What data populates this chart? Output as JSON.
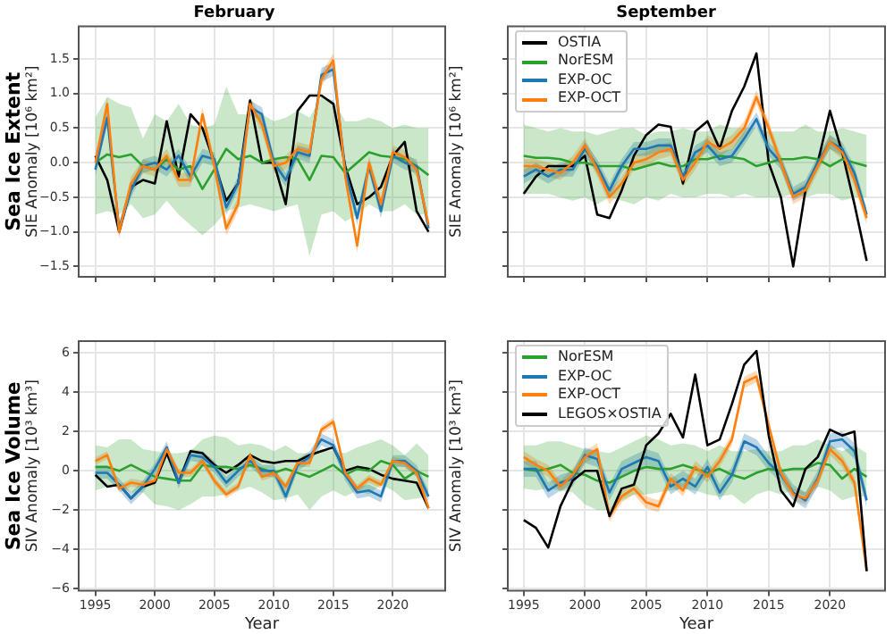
{
  "chart_data": [
    {
      "type": "line",
      "title": "February",
      "subtitle": "Sea Ice Extent",
      "ylabel": "SIE Anomaly [10⁶ km²]",
      "x": [
        1995,
        1996,
        1997,
        1998,
        1999,
        2000,
        2001,
        2002,
        2003,
        2004,
        2005,
        2006,
        2007,
        2008,
        2009,
        2010,
        2011,
        2012,
        2013,
        2014,
        2015,
        2016,
        2017,
        2018,
        2019,
        2020,
        2021,
        2022,
        2023
      ],
      "xlim": [
        1993.6,
        2024.4
      ],
      "xticks": [
        1995,
        2000,
        2005,
        2010,
        2015,
        2020
      ],
      "ylim": [
        -1.65,
        1.97
      ],
      "yticks": [
        {
          "value": -1.5,
          "label": "−1.5"
        },
        {
          "value": -1,
          "label": "−1.0"
        },
        {
          "value": -0.5,
          "label": "−0.5"
        },
        {
          "value": 0,
          "label": "0.0"
        },
        {
          "value": 0.5,
          "label": "0.5"
        },
        {
          "value": 1,
          "label": "1.0"
        },
        {
          "value": 1.5,
          "label": "1.5"
        }
      ],
      "grid": true,
      "tick_labels": "y",
      "series": [
        {
          "color": "#000000",
          "values": [
            0.1,
            -0.25,
            -1.0,
            -0.35,
            -0.25,
            -0.3,
            0.6,
            -0.2,
            0.7,
            0.5,
            0.0,
            -0.55,
            -0.3,
            0.9,
            0.0,
            0.0,
            -0.6,
            0.75,
            0.97,
            0.97,
            0.85,
            -0.05,
            -0.6,
            -0.5,
            -0.35,
            0.1,
            0.3,
            -0.7,
            -1.0
          ]
        },
        {
          "color": "#2ca02c",
          "values": [
            0.0,
            0.12,
            0.08,
            0.12,
            -0.05,
            -0.1,
            0.05,
            -0.1,
            -0.05,
            -0.38,
            -0.1,
            0.2,
            0.05,
            0.1,
            0.0,
            0.05,
            0.08,
            0.05,
            -0.25,
            0.1,
            0.08,
            -0.15,
            0.0,
            0.15,
            0.1,
            0.08,
            0.05,
            -0.05,
            -0.18
          ],
          "lower": [
            -0.75,
            -0.7,
            -0.75,
            -0.6,
            -0.8,
            -0.75,
            -0.55,
            -0.75,
            -0.9,
            -1.05,
            -0.9,
            -0.7,
            -0.65,
            -0.6,
            -0.65,
            -0.7,
            -0.65,
            -0.6,
            -1.35,
            -0.75,
            -0.7,
            -0.85,
            -0.75,
            -0.6,
            -0.7,
            -0.7,
            -0.6,
            -0.75,
            -0.75
          ],
          "upper": [
            0.65,
            0.95,
            0.85,
            0.8,
            0.35,
            0.7,
            0.6,
            0.85,
            0.55,
            0.5,
            0.55,
            1.1,
            0.7,
            0.7,
            0.7,
            0.6,
            0.65,
            0.75,
            0.65,
            0.95,
            0.9,
            0.6,
            0.6,
            0.65,
            0.6,
            0.5,
            0.55,
            0.5,
            0.5
          ]
        },
        {
          "color": "#1f77b4",
          "values": [
            -0.1,
            0.65,
            -0.95,
            -0.4,
            -0.05,
            0.0,
            -0.1,
            0.1,
            -0.2,
            0.1,
            0.05,
            -0.65,
            -0.3,
            0.8,
            0.7,
            0.0,
            -0.25,
            0.15,
            0.1,
            1.27,
            1.35,
            -0.1,
            -0.8,
            -0.05,
            -0.7,
            0.1,
            0.0,
            -0.05,
            -0.95
          ],
          "lower": [
            -0.2,
            0.55,
            -1.05,
            -0.5,
            -0.15,
            -0.1,
            -0.2,
            0.0,
            -0.3,
            0.0,
            -0.05,
            -0.75,
            -0.4,
            0.7,
            0.6,
            -0.1,
            -0.35,
            0.05,
            0.0,
            1.17,
            1.25,
            -0.2,
            -0.9,
            -0.15,
            -0.8,
            0.0,
            -0.1,
            -0.15,
            -1.05
          ],
          "upper": [
            0.0,
            0.75,
            -0.85,
            -0.3,
            0.05,
            0.1,
            0.0,
            0.2,
            -0.1,
            0.2,
            0.15,
            -0.55,
            -0.2,
            0.9,
            0.8,
            0.1,
            -0.15,
            0.25,
            0.2,
            1.37,
            1.45,
            0.0,
            -0.7,
            0.05,
            -0.6,
            0.2,
            0.1,
            0.05,
            -0.85
          ]
        },
        {
          "color": "#ff7f0e",
          "values": [
            0.0,
            0.85,
            -1.0,
            -0.3,
            -0.05,
            -0.1,
            0.1,
            -0.25,
            -0.25,
            0.7,
            -0.05,
            -0.95,
            -0.6,
            0.85,
            0.55,
            -0.05,
            0.0,
            0.2,
            0.15,
            1.2,
            1.48,
            -0.2,
            -1.2,
            0.0,
            -0.6,
            0.15,
            0.08,
            -0.1,
            -0.9
          ],
          "lower": [
            -0.1,
            0.75,
            -1.1,
            -0.4,
            -0.15,
            -0.2,
            0.0,
            -0.35,
            -0.35,
            0.6,
            -0.15,
            -1.05,
            -0.7,
            0.75,
            0.45,
            -0.15,
            -0.1,
            0.1,
            0.05,
            1.1,
            1.38,
            -0.3,
            -1.3,
            -0.1,
            -0.7,
            0.05,
            -0.02,
            -0.2,
            -1.0
          ],
          "upper": [
            0.1,
            0.95,
            -0.9,
            -0.2,
            0.05,
            0.0,
            0.2,
            -0.15,
            -0.15,
            0.8,
            0.05,
            -0.85,
            -0.5,
            0.95,
            0.65,
            0.05,
            0.1,
            0.3,
            0.25,
            1.3,
            1.58,
            -0.1,
            -1.1,
            0.1,
            -0.5,
            0.25,
            0.18,
            0.0,
            -0.8
          ]
        }
      ]
    },
    {
      "type": "line",
      "title": "September",
      "ylabel": "SIE Anomaly [10⁶ km²]",
      "x": [
        1995,
        1996,
        1997,
        1998,
        1999,
        2000,
        2001,
        2002,
        2003,
        2004,
        2005,
        2006,
        2007,
        2008,
        2009,
        2010,
        2011,
        2012,
        2013,
        2014,
        2015,
        2016,
        2017,
        2018,
        2019,
        2020,
        2021,
        2022,
        2023
      ],
      "xlim": [
        1993.7,
        2024.5
      ],
      "xticks": [
        1995,
        2000,
        2005,
        2010,
        2015,
        2020
      ],
      "ylim": [
        -1.65,
        1.97
      ],
      "yticks": [
        -1.5,
        -1,
        -0.5,
        0,
        0.5,
        1,
        1.5
      ],
      "grid": true,
      "tick_labels": false,
      "legend": "top left",
      "series": [
        {
          "name": "OSTIA",
          "color": "#000000",
          "values": [
            -0.45,
            -0.2,
            -0.05,
            -0.05,
            -0.05,
            0.1,
            -0.75,
            -0.8,
            -0.4,
            0.1,
            0.4,
            0.55,
            0.52,
            -0.3,
            0.45,
            0.6,
            0.2,
            0.75,
            1.1,
            1.58,
            0.0,
            -0.5,
            -1.5,
            -0.4,
            0.0,
            0.75,
            0.15,
            -0.6,
            -1.42
          ]
        },
        {
          "name": "NorESM",
          "color": "#2ca02c",
          "values": [
            0.1,
            0.07,
            0.07,
            0.05,
            0.0,
            0.0,
            -0.05,
            -0.05,
            -0.05,
            -0.1,
            -0.05,
            0.0,
            -0.05,
            -0.05,
            0.05,
            0.05,
            0.1,
            0.08,
            0.05,
            -0.05,
            0.0,
            0.05,
            0.05,
            0.08,
            0.05,
            -0.05,
            0.05,
            0.0,
            -0.05
          ],
          "lower": [
            -0.45,
            -0.45,
            -0.45,
            -0.5,
            -0.55,
            -0.5,
            -0.6,
            -0.5,
            -0.55,
            -0.6,
            -0.5,
            -0.55,
            -0.45,
            -0.5,
            -0.5,
            -0.45,
            -0.45,
            -0.5,
            -0.45,
            -0.5,
            -0.5,
            -0.5,
            -0.45,
            -0.5,
            -0.45,
            -0.45,
            -0.55,
            -0.5,
            -0.5
          ],
          "upper": [
            0.55,
            0.5,
            0.45,
            0.5,
            0.45,
            0.45,
            0.4,
            0.45,
            0.5,
            0.5,
            0.4,
            0.45,
            0.45,
            0.5,
            0.45,
            0.45,
            0.55,
            0.5,
            0.5,
            0.5,
            0.45,
            0.45,
            0.45,
            0.55,
            0.45,
            0.45,
            0.5,
            0.45,
            0.4
          ]
        },
        {
          "name": "EXP-OC",
          "color": "#1f77b4",
          "values": [
            -0.2,
            -0.1,
            -0.2,
            -0.1,
            -0.1,
            0.2,
            -0.05,
            -0.4,
            -0.05,
            0.2,
            0.2,
            0.25,
            0.25,
            -0.2,
            0.15,
            0.25,
            0.05,
            0.1,
            0.35,
            0.63,
            0.2,
            0.0,
            -0.45,
            -0.35,
            0.0,
            0.3,
            0.2,
            -0.15,
            -0.75
          ],
          "lower": [
            -0.3,
            -0.2,
            -0.3,
            -0.2,
            -0.2,
            0.1,
            -0.15,
            -0.5,
            -0.15,
            0.1,
            0.1,
            0.15,
            0.15,
            -0.3,
            0.05,
            0.15,
            -0.05,
            0.0,
            0.25,
            0.53,
            0.1,
            -0.1,
            -0.55,
            -0.45,
            -0.1,
            0.2,
            0.1,
            -0.25,
            -0.85
          ],
          "upper": [
            -0.1,
            0.0,
            -0.1,
            0.0,
            0.0,
            0.3,
            0.05,
            -0.3,
            0.05,
            0.3,
            0.3,
            0.35,
            0.35,
            -0.1,
            0.25,
            0.35,
            0.15,
            0.2,
            0.45,
            0.73,
            0.3,
            0.1,
            -0.35,
            -0.25,
            0.1,
            0.4,
            0.3,
            -0.05,
            -0.65
          ]
        },
        {
          "name": "EXP-OCT",
          "color": "#ff7f0e",
          "values": [
            -0.05,
            -0.05,
            -0.1,
            -0.15,
            0.0,
            0.25,
            -0.1,
            -0.5,
            -0.3,
            0.0,
            0.05,
            0.15,
            0.2,
            -0.25,
            0.0,
            0.3,
            0.2,
            0.3,
            0.5,
            0.95,
            0.5,
            0.0,
            -0.5,
            -0.4,
            -0.05,
            0.3,
            0.15,
            -0.25,
            -0.8
          ],
          "lower": [
            -0.15,
            -0.15,
            -0.2,
            -0.25,
            -0.1,
            0.15,
            -0.2,
            -0.6,
            -0.4,
            -0.1,
            -0.05,
            0.05,
            0.1,
            -0.35,
            -0.1,
            0.2,
            0.1,
            0.2,
            0.4,
            0.85,
            0.4,
            -0.1,
            -0.6,
            -0.5,
            -0.15,
            0.2,
            0.05,
            -0.35,
            -0.9
          ],
          "upper": [
            0.05,
            0.05,
            0.0,
            -0.05,
            0.1,
            0.35,
            0.0,
            -0.4,
            -0.2,
            0.1,
            0.15,
            0.25,
            0.3,
            -0.15,
            0.1,
            0.4,
            0.3,
            0.4,
            0.6,
            1.05,
            0.6,
            0.1,
            -0.4,
            -0.3,
            0.05,
            0.4,
            0.25,
            -0.15,
            -0.7
          ]
        }
      ]
    },
    {
      "type": "line",
      "subtitle": "Sea Ice Volume",
      "ylabel": "SIV Anomaly [10³ km³]",
      "xlabel": "Year",
      "x": [
        1995,
        1996,
        1997,
        1998,
        1999,
        2000,
        2001,
        2002,
        2003,
        2004,
        2005,
        2006,
        2007,
        2008,
        2009,
        2010,
        2011,
        2012,
        2013,
        2014,
        2015,
        2016,
        2017,
        2018,
        2019,
        2020,
        2021,
        2022,
        2023
      ],
      "xlim": [
        1993.6,
        2024.4
      ],
      "xticks": [
        1995,
        2000,
        2005,
        2010,
        2015,
        2020
      ],
      "ylim": [
        -6.1,
        6.6
      ],
      "yticks": [
        {
          "value": -6,
          "label": "−6"
        },
        {
          "value": -4,
          "label": "−4"
        },
        {
          "value": -2,
          "label": "−2"
        },
        0,
        2,
        4,
        6
      ],
      "grid": true,
      "series": [
        {
          "color": "#000000",
          "values": [
            -0.2,
            -0.8,
            -0.7,
            -1.4,
            -0.8,
            -0.6,
            0.9,
            -0.6,
            1.0,
            0.9,
            0.3,
            -0.1,
            0.3,
            0.8,
            0.5,
            0.4,
            0.5,
            0.5,
            0.8,
            1.0,
            1.2,
            0.0,
            0.2,
            0.1,
            -0.2,
            -0.4,
            -0.5,
            -0.6,
            -1.9
          ]
        },
        {
          "color": "#2ca02c",
          "values": [
            0.2,
            0.2,
            0.0,
            0.3,
            0.0,
            -0.3,
            -0.4,
            -0.5,
            -0.5,
            0.3,
            0.2,
            0.2,
            0.1,
            0.3,
            0.1,
            -0.1,
            0.1,
            -0.1,
            -0.3,
            0.0,
            0.3,
            -0.2,
            0.1,
            0.0,
            0.5,
            0.3,
            -0.4,
            0.0,
            -0.3
          ],
          "lower": [
            -1.0,
            -0.8,
            -0.8,
            -1.1,
            -1.1,
            -1.7,
            -1.8,
            -2.0,
            -1.7,
            -1.3,
            -1.3,
            -1.2,
            -1.0,
            -0.8,
            -1.1,
            -1.5,
            -1.4,
            -1.2,
            -2.0,
            -1.3,
            -1.0,
            -1.3,
            -1.0,
            -1.2,
            -0.7,
            -1.0,
            -1.5,
            -1.4,
            -1.3
          ],
          "upper": [
            1.3,
            1.2,
            1.6,
            1.6,
            1.1,
            1.0,
            0.9,
            0.9,
            1.0,
            1.6,
            1.8,
            1.7,
            1.3,
            1.4,
            1.3,
            1.0,
            1.3,
            0.9,
            0.9,
            1.1,
            1.0,
            0.9,
            1.2,
            1.4,
            1.6,
            1.3,
            0.8,
            1.4,
            0.8
          ]
        },
        {
          "color": "#1f77b4",
          "values": [
            -0.1,
            -0.1,
            -0.7,
            -1.4,
            -0.8,
            0.1,
            1.2,
            -0.6,
            0.8,
            0.7,
            0.2,
            -0.6,
            0.0,
            0.5,
            0.0,
            0.0,
            -1.3,
            0.3,
            0.7,
            1.6,
            1.3,
            -0.2,
            -1.1,
            -1.0,
            -1.3,
            0.5,
            0.5,
            0.0,
            -1.3
          ],
          "lower": [
            -0.4,
            -0.4,
            -1.0,
            -1.7,
            -1.1,
            -0.2,
            0.9,
            -0.9,
            0.5,
            0.4,
            -0.1,
            -0.9,
            -0.3,
            0.2,
            -0.3,
            -0.3,
            -1.6,
            0.0,
            0.4,
            1.3,
            1.0,
            -0.5,
            -1.4,
            -1.3,
            -1.6,
            0.2,
            0.2,
            -0.3,
            -1.6
          ],
          "upper": [
            0.2,
            0.2,
            -0.4,
            -1.1,
            -0.5,
            0.4,
            1.5,
            -0.3,
            1.1,
            1.0,
            0.5,
            -0.3,
            0.3,
            0.8,
            0.3,
            0.3,
            -1.0,
            0.6,
            1.0,
            1.9,
            1.6,
            0.1,
            -0.8,
            -0.7,
            -1.0,
            0.8,
            0.8,
            0.3,
            -1.0
          ]
        },
        {
          "color": "#ff7f0e",
          "values": [
            0.5,
            0.8,
            -0.9,
            -0.6,
            -0.7,
            -0.5,
            1.1,
            -0.1,
            -0.1,
            0.5,
            -0.5,
            -1.2,
            -0.8,
            0.8,
            -0.3,
            -0.1,
            -0.8,
            0.4,
            0.4,
            2.1,
            2.5,
            -0.1,
            -0.9,
            -0.4,
            -0.7,
            0.5,
            0.4,
            -0.1,
            -1.9
          ],
          "lower": [
            0.3,
            0.6,
            -1.1,
            -0.8,
            -0.9,
            -0.7,
            0.9,
            -0.3,
            -0.3,
            0.3,
            -0.7,
            -1.4,
            -1.0,
            0.6,
            -0.5,
            -0.3,
            -1.0,
            0.2,
            0.2,
            1.9,
            2.3,
            -0.3,
            -1.1,
            -0.6,
            -0.9,
            0.3,
            0.2,
            -0.3,
            -2.1
          ],
          "upper": [
            0.7,
            1.0,
            -0.7,
            -0.4,
            -0.5,
            -0.3,
            1.3,
            0.1,
            0.1,
            0.7,
            -0.3,
            -1.0,
            -0.6,
            1.0,
            -0.1,
            0.1,
            -0.6,
            0.6,
            0.6,
            2.3,
            2.7,
            0.1,
            -0.7,
            -0.2,
            -0.5,
            0.7,
            0.6,
            0.1,
            -1.7
          ]
        }
      ]
    },
    {
      "type": "line",
      "ylabel": "SIV Anomaly [10³ km³]",
      "xlabel": "Year",
      "x": [
        1995,
        1996,
        1997,
        1998,
        1999,
        2000,
        2001,
        2002,
        2003,
        2004,
        2005,
        2006,
        2007,
        2008,
        2009,
        2010,
        2011,
        2012,
        2013,
        2014,
        2015,
        2016,
        2017,
        2018,
        2019,
        2020,
        2021,
        2022,
        2023
      ],
      "xlim": [
        1993.7,
        2024.5
      ],
      "xticks": [
        1995,
        2000,
        2005,
        2010,
        2015,
        2020
      ],
      "ylim": [
        -6.1,
        6.6
      ],
      "yticks": [
        -6,
        -4,
        -2,
        0,
        2,
        4,
        6
      ],
      "grid": true,
      "tick_labels": "x",
      "legend": "top left",
      "series": [
        {
          "name": "NorESM",
          "color": "#2ca02c",
          "values": [
            0.1,
            0.0,
            0.1,
            0.3,
            -0.1,
            -0.2,
            -0.5,
            -0.6,
            -0.3,
            0.0,
            0.2,
            0.1,
            0.1,
            0.3,
            0.1,
            -0.1,
            0.1,
            -0.2,
            -0.4,
            -0.1,
            0.1,
            0.0,
            0.1,
            0.1,
            0.4,
            0.3,
            -0.4,
            0.1,
            -0.3
          ],
          "lower": [
            -0.9,
            -1.0,
            -0.9,
            -1.0,
            -1.1,
            -1.7,
            -2.0,
            -2.0,
            -1.5,
            -1.2,
            -1.2,
            -1.1,
            -1.0,
            -0.9,
            -1.0,
            -1.2,
            -1.3,
            -1.2,
            -1.7,
            -1.2,
            -1.0,
            -1.2,
            -1.0,
            -1.3,
            -0.8,
            -1.0,
            -1.5,
            -1.3,
            -1.3
          ],
          "upper": [
            1.3,
            1.3,
            1.5,
            1.5,
            1.3,
            1.1,
            1.0,
            0.9,
            1.2,
            1.5,
            1.8,
            1.6,
            1.3,
            1.4,
            1.3,
            1.0,
            1.3,
            1.0,
            1.0,
            1.1,
            1.0,
            1.0,
            1.3,
            1.3,
            1.6,
            1.3,
            1.0,
            1.3,
            0.9
          ]
        },
        {
          "name": "EXP-OC",
          "color": "#1f77b4",
          "values": [
            0.1,
            0.1,
            -1.0,
            -0.6,
            -0.4,
            0.8,
            0.6,
            -1.1,
            0.1,
            0.4,
            0.7,
            0.5,
            -0.8,
            -0.4,
            -0.8,
            0.2,
            -1.1,
            -0.2,
            1.5,
            1.2,
            0.4,
            -0.2,
            -1.1,
            -1.5,
            -0.4,
            1.5,
            1.6,
            1.0,
            -1.5
          ],
          "lower": [
            -0.3,
            -0.3,
            -1.4,
            -1.0,
            -0.8,
            0.4,
            0.2,
            -1.5,
            -0.3,
            0.0,
            0.3,
            0.1,
            -1.2,
            -0.8,
            -1.2,
            -0.2,
            -1.5,
            -0.6,
            1.1,
            0.8,
            0.0,
            -0.6,
            -1.5,
            -1.9,
            -0.8,
            1.1,
            1.2,
            0.6,
            -1.9
          ],
          "upper": [
            0.5,
            0.5,
            -0.6,
            -0.2,
            0.0,
            1.2,
            1.0,
            -0.7,
            0.5,
            0.8,
            1.1,
            0.9,
            -0.4,
            0.0,
            -0.4,
            0.6,
            -0.7,
            0.2,
            1.9,
            1.6,
            0.8,
            0.2,
            -0.7,
            -1.1,
            0.0,
            1.9,
            2.0,
            1.4,
            -1.1
          ]
        },
        {
          "name": "EXP-OCT",
          "color": "#ff7f0e",
          "values": [
            0.7,
            0.3,
            0.0,
            -0.8,
            -0.2,
            0.7,
            1.1,
            -2.3,
            -1.3,
            -0.9,
            -1.6,
            -1.8,
            -0.4,
            -1.0,
            0.2,
            -0.3,
            0.5,
            1.6,
            4.5,
            4.8,
            2.3,
            -0.1,
            -1.2,
            -1.4,
            -0.5,
            1.1,
            0.5,
            -0.6,
            -5.1
          ],
          "lower": [
            0.4,
            0.0,
            -0.3,
            -1.1,
            -0.5,
            0.4,
            0.8,
            -2.6,
            -1.6,
            -1.2,
            -1.9,
            -2.1,
            -0.7,
            -1.3,
            -0.1,
            -0.6,
            0.2,
            1.3,
            4.2,
            4.5,
            2.0,
            -0.4,
            -1.5,
            -1.7,
            -0.8,
            0.8,
            0.2,
            -0.9,
            -5.4
          ],
          "upper": [
            1.0,
            0.6,
            0.3,
            -0.5,
            0.1,
            1.0,
            1.4,
            -2.0,
            -1.0,
            -0.6,
            -1.3,
            -1.5,
            -0.1,
            -0.7,
            0.5,
            0.0,
            0.8,
            1.9,
            4.8,
            5.1,
            2.6,
            0.2,
            -0.9,
            -1.1,
            -0.2,
            1.4,
            0.8,
            -0.3,
            -4.8
          ]
        },
        {
          "name": "LEGOS×OSTIA",
          "color": "#000000",
          "values": [
            -2.5,
            -2.9,
            -3.9,
            -1.8,
            -0.5,
            0.0,
            0.0,
            -2.3,
            -0.9,
            -0.7,
            1.3,
            1.9,
            2.9,
            1.7,
            4.9,
            1.3,
            1.6,
            3.4,
            5.4,
            6.1,
            1.8,
            -1.0,
            -1.8,
            0.1,
            0.7,
            2.1,
            1.8,
            2.0,
            -5.1
          ]
        }
      ]
    }
  ]
}
